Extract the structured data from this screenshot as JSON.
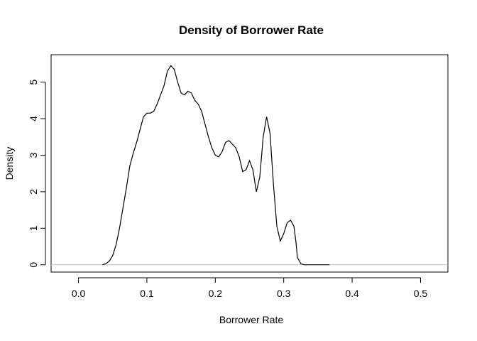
{
  "chart_data": {
    "type": "line",
    "title": "Density of Borrower Rate",
    "xlabel": "Borrower Rate",
    "ylabel": "Density",
    "xlim": [
      -0.04,
      0.54
    ],
    "ylim": [
      -0.2,
      5.75
    ],
    "x_ticks": [
      0.0,
      0.1,
      0.2,
      0.3,
      0.4,
      0.5
    ],
    "x_tick_labels": [
      "0.0",
      "0.1",
      "0.2",
      "0.3",
      "0.4",
      "0.5"
    ],
    "y_ticks": [
      0,
      1,
      2,
      3,
      4,
      5
    ],
    "y_tick_labels": [
      "0",
      "1",
      "2",
      "3",
      "4",
      "5"
    ],
    "grid": false,
    "legend": "none",
    "baseline": {
      "y": 0,
      "color": "#bebebe"
    },
    "line_color": "#000000",
    "series": [
      {
        "x": [
          0.035,
          0.04,
          0.045,
          0.05,
          0.055,
          0.06,
          0.065,
          0.07,
          0.075,
          0.08,
          0.085,
          0.09,
          0.095,
          0.1,
          0.105,
          0.11,
          0.115,
          0.12,
          0.125,
          0.13,
          0.135,
          0.14,
          0.145,
          0.15,
          0.155,
          0.16,
          0.165,
          0.17,
          0.175,
          0.18,
          0.185,
          0.19,
          0.195,
          0.2,
          0.205,
          0.21,
          0.215,
          0.22,
          0.225,
          0.23,
          0.235,
          0.24,
          0.245,
          0.25,
          0.255,
          0.26,
          0.265,
          0.27,
          0.275,
          0.28,
          0.285,
          0.29,
          0.295,
          0.3,
          0.305,
          0.31,
          0.315,
          0.318,
          0.32,
          0.325,
          0.33,
          0.335,
          0.34,
          0.345,
          0.348,
          0.35,
          0.355,
          0.36,
          0.365,
          0.367
        ],
        "y": [
          0.0,
          0.03,
          0.1,
          0.25,
          0.55,
          1.0,
          1.55,
          2.1,
          2.7,
          3.05,
          3.35,
          3.7,
          4.05,
          4.15,
          4.15,
          4.2,
          4.4,
          4.65,
          4.9,
          5.3,
          5.45,
          5.35,
          5.0,
          4.7,
          4.65,
          4.75,
          4.7,
          4.5,
          4.4,
          4.2,
          3.85,
          3.5,
          3.2,
          3.0,
          2.95,
          3.1,
          3.35,
          3.4,
          3.3,
          3.2,
          2.95,
          2.55,
          2.6,
          2.85,
          2.6,
          2.0,
          2.4,
          3.5,
          4.05,
          3.6,
          2.2,
          1.05,
          0.65,
          0.85,
          1.15,
          1.22,
          1.05,
          0.6,
          0.2,
          0.03,
          0.0,
          0.0,
          0.0,
          0.0,
          0.0,
          0.0,
          0.0,
          0.0,
          0.0,
          0.0
        ]
      }
    ]
  }
}
